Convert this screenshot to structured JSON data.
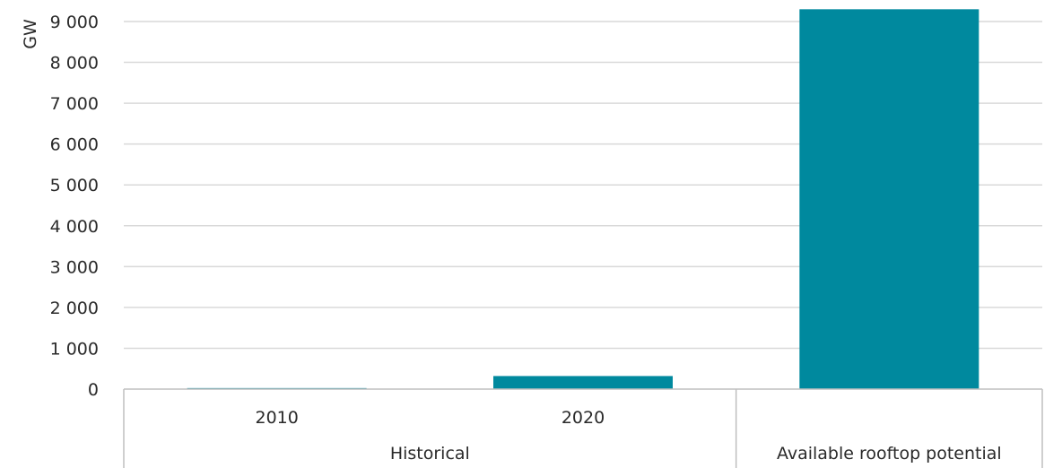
{
  "chart_data": {
    "type": "bar",
    "ylabel": "GW",
    "ylim": [
      0,
      9000
    ],
    "yticks": [
      0,
      1000,
      2000,
      3000,
      4000,
      5000,
      6000,
      7000,
      8000,
      9000
    ],
    "ytick_labels": [
      "0",
      "1 000",
      "2 000",
      "3 000",
      "4 000",
      "5 000",
      "6 000",
      "7 000",
      "8 000",
      "9 000"
    ],
    "categories": [
      "2010",
      "2020",
      ""
    ],
    "values": [
      25,
      320,
      9300
    ],
    "groups": [
      {
        "label": "Historical",
        "span": 2
      },
      {
        "label": "Available rooftop potential",
        "span": 1
      }
    ],
    "bar_color": "#00899e",
    "grid": true,
    "legend": "none"
  }
}
